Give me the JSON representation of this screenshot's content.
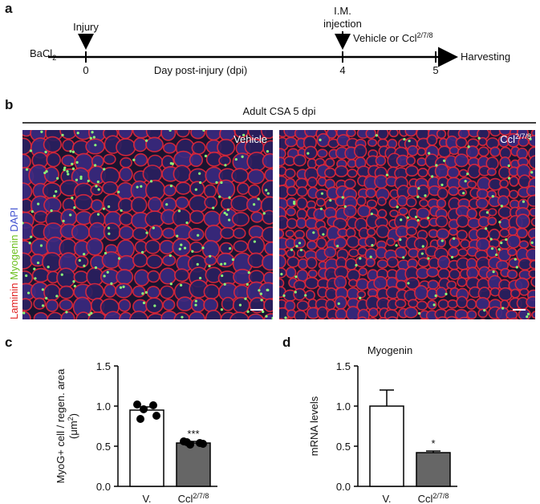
{
  "panel_labels": [
    "a",
    "b",
    "c",
    "d"
  ],
  "timeline": {
    "start_label": "BaCl",
    "start_sub": "2",
    "injury": "Injury",
    "injection": [
      "I.M.",
      "injection"
    ],
    "treatment": "Vehicle or Ccl",
    "treatment_sup": "2/7/8",
    "end_label": "Harvesting",
    "axis_label": "Day post-injury (dpi)",
    "ticks": [
      0,
      4,
      5
    ]
  },
  "micrographs": {
    "title": "Adult CSA 5 dpi",
    "stain_labels": [
      "Laminin",
      "Myogenin",
      "DAPI"
    ],
    "left_label": "Vehicle",
    "right_label": "Ccl",
    "right_label_sup": "2/7/8"
  },
  "chart_data": [
    {
      "type": "bar",
      "ylabel": "MyoG+ cell / regen. area",
      "ylabel_unit": [
        "(μm",
        "2",
        ")"
      ],
      "categories": [
        "V.",
        "Ccl"
      ],
      "category_sups": [
        null,
        "2/7/8"
      ],
      "values": [
        0.95,
        0.54
      ],
      "errors": [
        0.04,
        0.02
      ],
      "points": [
        [
          1.02,
          1.01,
          0.96,
          0.88,
          0.84
        ],
        [
          0.56,
          0.54,
          0.52,
          0.53,
          0.55
        ]
      ],
      "significance": [
        null,
        "***"
      ],
      "colors": [
        "#ffffff",
        "#666666"
      ],
      "ylim": [
        0,
        1.5
      ],
      "yticks": [
        {
          "value": 0,
          "label": "0.0"
        },
        0.5,
        {
          "value": 1,
          "label": "1.0"
        },
        1.5
      ]
    },
    {
      "type": "bar",
      "title": "Myogenin",
      "ylabel": "mRNA levels",
      "categories": [
        "V.",
        "Ccl"
      ],
      "category_sups": [
        null,
        "2/7/8"
      ],
      "values": [
        1.0,
        0.42
      ],
      "errors": [
        0.2,
        0.02
      ],
      "significance": [
        null,
        "*"
      ],
      "colors": [
        "#ffffff",
        "#666666"
      ],
      "ylim": [
        0,
        1.5
      ],
      "yticks": [
        {
          "value": 0,
          "label": "0.0"
        },
        0.5,
        {
          "value": 1,
          "label": "1.0"
        },
        1.5
      ]
    }
  ]
}
